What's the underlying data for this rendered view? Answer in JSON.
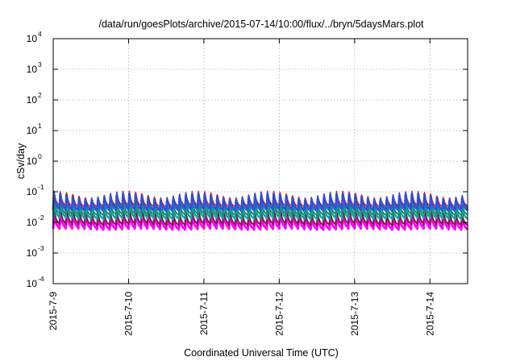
{
  "chart_data": {
    "type": "line",
    "title": "/data/run/goesPlots/archive/2015-07-14/10:00/flux/../bryn/5daysMars.plot",
    "xlabel": "Coordinated Universal Time (UTC)",
    "ylabel": "cSv/day",
    "yscale": "log",
    "ylim": [
      0.0001,
      10000
    ],
    "y_ticks": [
      {
        "base": "10",
        "exp": "-4"
      },
      {
        "base": "10",
        "exp": "-3"
      },
      {
        "base": "10",
        "exp": "-2"
      },
      {
        "base": "10",
        "exp": "-1"
      },
      {
        "base": "10",
        "exp": "0"
      },
      {
        "base": "10",
        "exp": "1"
      },
      {
        "base": "10",
        "exp": "2"
      },
      {
        "base": "10",
        "exp": "3"
      },
      {
        "base": "10",
        "exp": "4"
      }
    ],
    "x_ticks": [
      "2015-7-9",
      "2015-7-10",
      "2015-7-11",
      "2015-7-12",
      "2015-7-13",
      "2015-7-14"
    ],
    "xlim_days": [
      0,
      5.5
    ],
    "grid": true,
    "legend": "none",
    "series": [
      {
        "color": "#ff00ff",
        "peak": 0.02,
        "trough": 0.0055,
        "lw": 3
      },
      {
        "color": "#7a1f3d",
        "peak": 0.026,
        "trough": 0.0075,
        "lw": 2
      },
      {
        "color": "#00aaaa",
        "peak": 0.042,
        "trough": 0.012,
        "lw": 2.5
      },
      {
        "color": "#2e8b57",
        "peak": 0.05,
        "trough": 0.016,
        "lw": 2
      },
      {
        "color": "#1e6fe0",
        "peak": 0.07,
        "trough": 0.022,
        "lw": 3
      },
      {
        "color": "#d81b1b",
        "peak": 0.085,
        "trough": 0.03,
        "lw": 1.5
      },
      {
        "color": "#2d4fd6",
        "peak": 0.075,
        "trough": 0.025,
        "lw": 2
      }
    ]
  }
}
